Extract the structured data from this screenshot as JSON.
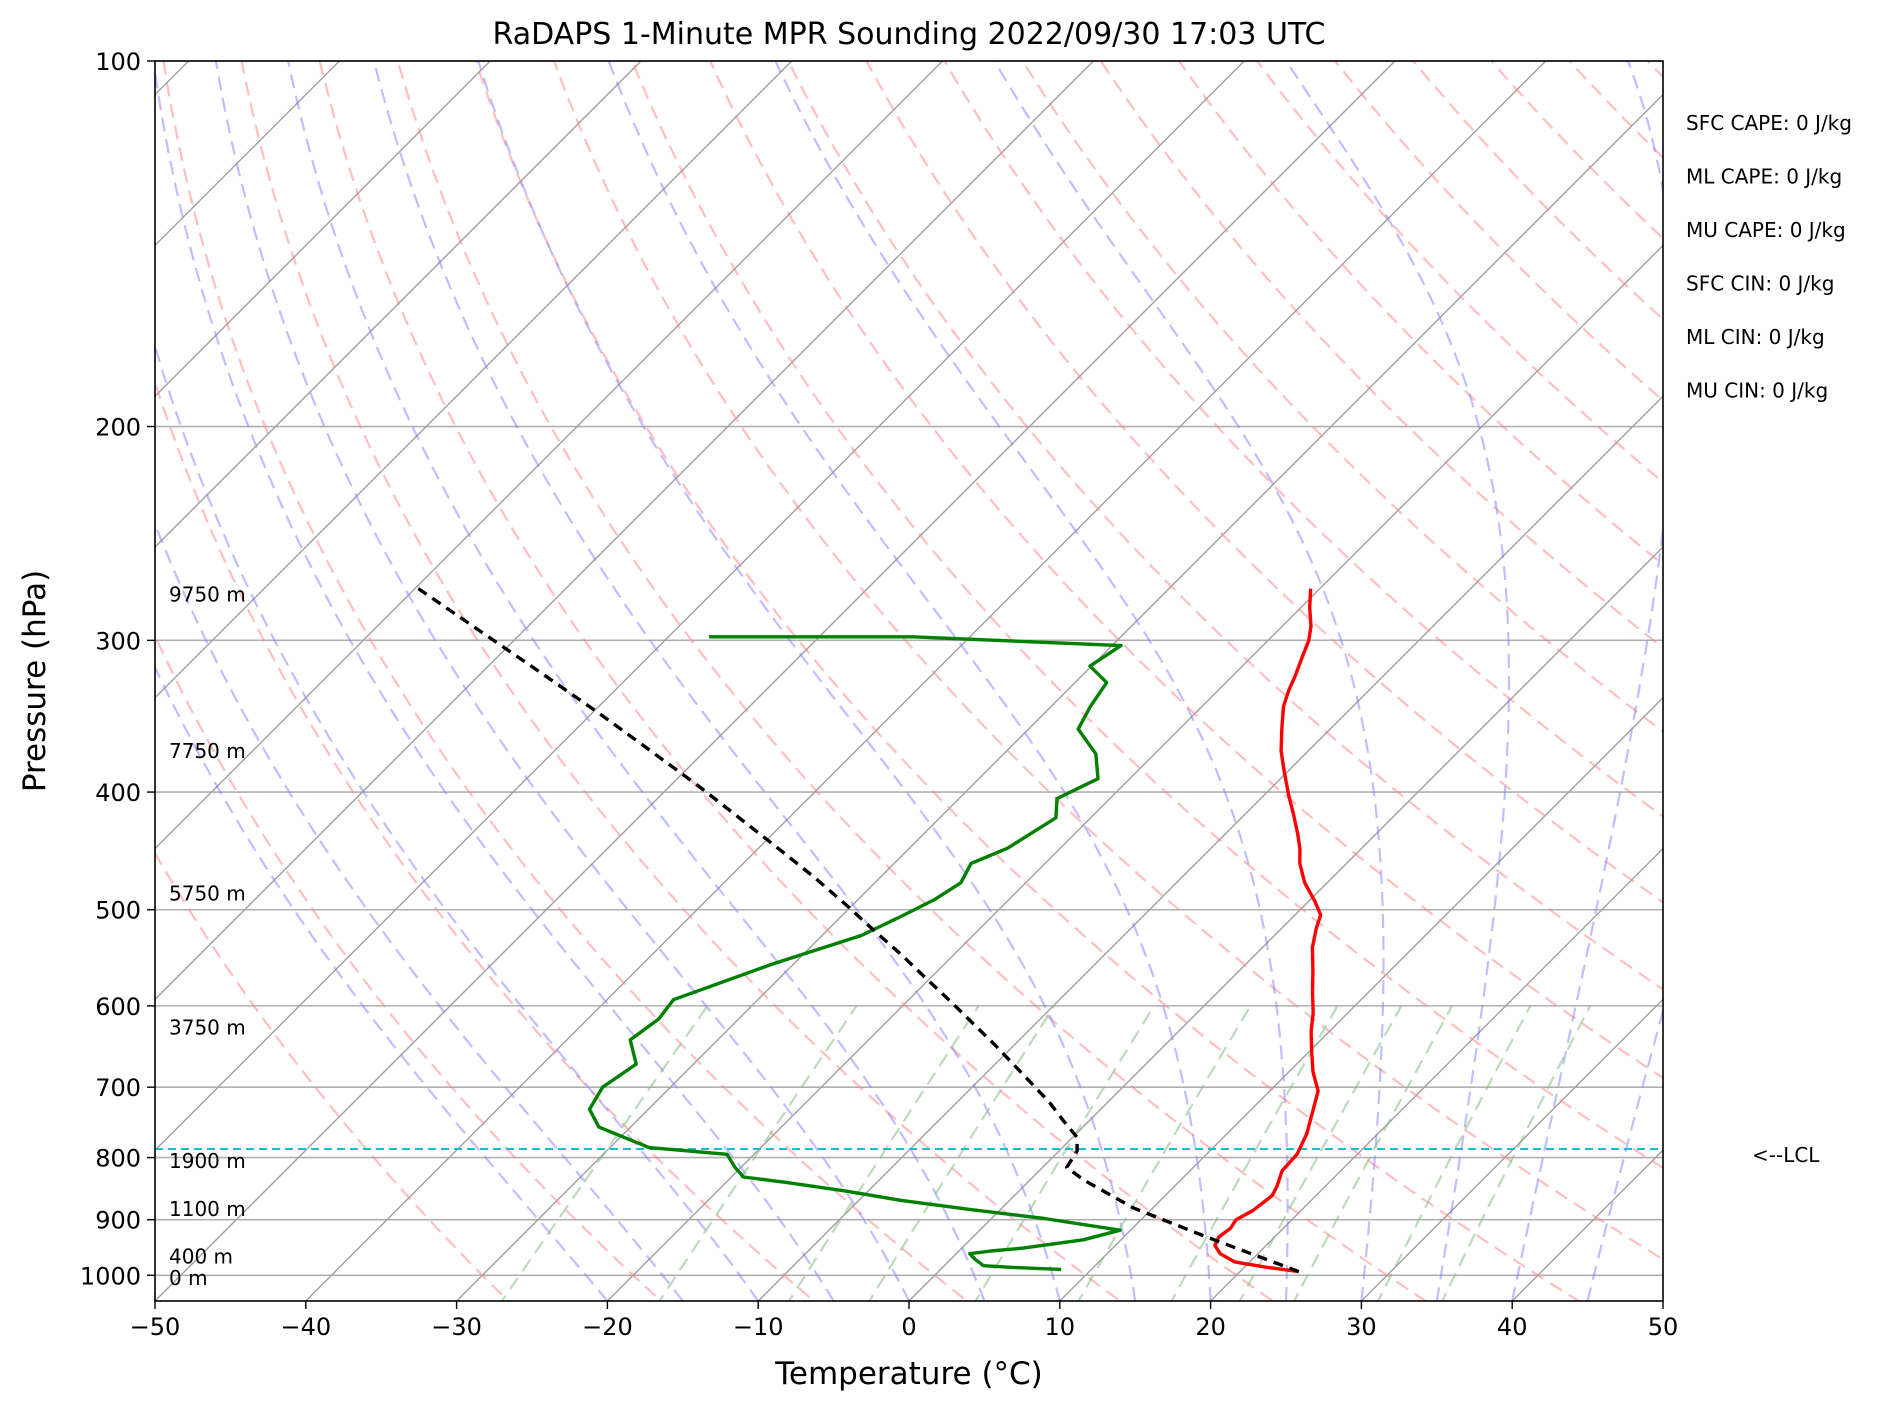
{
  "chart_data": {
    "type": "line",
    "title": "RaDAPS 1-Minute MPR Sounding 2022/09/30 17:03 UTC",
    "xlabel": "Temperature (°C)",
    "ylabel": "Pressure (hPa)",
    "xlim": [
      -50,
      50
    ],
    "ylim": [
      1050,
      100
    ],
    "y_scale": "log",
    "skew": "skew-T log-P",
    "grid": true,
    "x_ticks": [
      "−50",
      "−40",
      "−30",
      "−20",
      "−10",
      "0",
      "10",
      "20",
      "30",
      "40",
      "50"
    ],
    "x_tick_values": [
      -50,
      -40,
      -30,
      -20,
      -10,
      0,
      10,
      20,
      30,
      40,
      50
    ],
    "y_ticks": [
      "100",
      "200",
      "300",
      "400",
      "500",
      "600",
      "700",
      "800",
      "900",
      "1000"
    ],
    "y_tick_values": [
      100,
      200,
      300,
      400,
      500,
      600,
      700,
      800,
      900,
      1000
    ],
    "height_labels": [
      {
        "label": "9750 m",
        "p": 275
      },
      {
        "label": "7750 m",
        "p": 370
      },
      {
        "label": "5750 m",
        "p": 485
      },
      {
        "label": "3750 m",
        "p": 625
      },
      {
        "label": "1900 m",
        "p": 805
      },
      {
        "label": "1100 m",
        "p": 882
      },
      {
        "label": "400 m",
        "p": 965
      },
      {
        "label": "0 m",
        "p": 1005
      }
    ],
    "lcl": {
      "label": "<--LCL",
      "p": 787,
      "color": "#17becf"
    },
    "indices": [
      "SFC CAPE: 0 J/kg",
      "ML CAPE: 0 J/kg",
      "MU CAPE: 0 J/kg",
      "SFC CIN: 0 J/kg",
      "ML CIN: 0 J/kg",
      "MU CIN: 0 J/kg"
    ],
    "colors": {
      "temperature": "#ff0000",
      "dewpoint": "#008000",
      "parcel": "#000000",
      "isotherm": "#a0a0a0",
      "dry_adiabat": "#ff8080",
      "moist_adiabat": "#8080ff",
      "mixing_ratio": "#80c080",
      "lcl": "#17becf"
    },
    "series": [
      {
        "name": "",
        "color": "#ff0000",
        "points": [
          [
            23.9,
            993
          ],
          [
            21.5,
            985
          ],
          [
            19.0,
            975
          ],
          [
            17.5,
            960
          ],
          [
            16.6,
            945
          ],
          [
            16.3,
            930
          ],
          [
            16.5,
            915
          ],
          [
            16.3,
            900
          ],
          [
            16.8,
            885
          ],
          [
            17.1,
            860
          ],
          [
            16.8,
            845
          ],
          [
            16.1,
            820
          ],
          [
            16.0,
            795
          ],
          [
            15.3,
            765
          ],
          [
            14.1,
            730
          ],
          [
            13.2,
            705
          ],
          [
            11.6,
            680
          ],
          [
            10.2,
            655
          ],
          [
            8.8,
            630
          ],
          [
            7.7,
            608
          ],
          [
            6.3,
            585
          ],
          [
            4.8,
            560
          ],
          [
            3.3,
            537
          ],
          [
            2.3,
            518
          ],
          [
            1.7,
            505
          ],
          [
            0.4,
            492
          ],
          [
            -1.5,
            475
          ],
          [
            -3.1,
            458
          ],
          [
            -4.1,
            445
          ],
          [
            -5.2,
            433
          ],
          [
            -6.7,
            418
          ],
          [
            -8.4,
            402
          ],
          [
            -10.2,
            385
          ],
          [
            -11.8,
            370
          ],
          [
            -13.2,
            355
          ],
          [
            -14.6,
            340
          ],
          [
            -15.3,
            330
          ],
          [
            -15.9,
            320
          ],
          [
            -16.6,
            310
          ],
          [
            -17.3,
            300
          ],
          [
            -18.1,
            292
          ],
          [
            -19.4,
            282
          ],
          [
            -20.6,
            272
          ]
        ]
      },
      {
        "name": "",
        "color": "#008000",
        "points": [
          [
            8.0,
            989
          ],
          [
            4.5,
            985
          ],
          [
            2.6,
            982
          ],
          [
            1.6,
            970
          ],
          [
            0.9,
            960
          ],
          [
            2.1,
            955
          ],
          [
            4.0,
            950
          ],
          [
            7.5,
            935
          ],
          [
            9.3,
            918
          ],
          [
            3.5,
            898
          ],
          [
            -1.9,
            883
          ],
          [
            -7.1,
            868
          ],
          [
            -11.6,
            852
          ],
          [
            -16.2,
            838
          ],
          [
            -19.2,
            830
          ],
          [
            -20.4,
            815
          ],
          [
            -21.8,
            795
          ],
          [
            -27.4,
            785
          ],
          [
            -32.1,
            755
          ],
          [
            -33.9,
            730
          ],
          [
            -34.5,
            700
          ],
          [
            -33.8,
            670
          ],
          [
            -35.8,
            640
          ],
          [
            -35.3,
            615
          ],
          [
            -35.6,
            593
          ],
          [
            -31.5,
            555
          ],
          [
            -27.4,
            525
          ],
          [
            -26.0,
            506
          ],
          [
            -24.9,
            490
          ],
          [
            -24.3,
            475
          ],
          [
            -24.9,
            458
          ],
          [
            -23.5,
            445
          ],
          [
            -22.3,
            420
          ],
          [
            -23.5,
            405
          ],
          [
            -22.1,
            390
          ],
          [
            -23.9,
            372
          ],
          [
            -26.7,
            355
          ],
          [
            -27.4,
            340
          ],
          [
            -27.9,
            325
          ],
          [
            -30.1,
            315
          ],
          [
            -29.4,
            303
          ],
          [
            -43.8,
            298
          ],
          [
            -57.3,
            298
          ]
        ]
      },
      {
        "name": "",
        "color": "#000000",
        "dashed": true,
        "points": [
          [
            23.9,
            993
          ],
          [
            15.5,
            930
          ],
          [
            8.7,
            880
          ],
          [
            3.6,
            835
          ],
          [
            1.6,
            815
          ],
          [
            1.2,
            790
          ],
          [
            0.3,
            770
          ],
          [
            -1.8,
            745
          ],
          [
            -3.9,
            720
          ],
          [
            -6.3,
            695
          ],
          [
            -8.8,
            670
          ],
          [
            -11.4,
            645
          ],
          [
            -14.2,
            620
          ],
          [
            -17.1,
            595
          ],
          [
            -20.2,
            570
          ],
          [
            -23.4,
            545
          ],
          [
            -26.9,
            520
          ],
          [
            -30.5,
            495
          ],
          [
            -34.4,
            470
          ],
          [
            -38.7,
            445
          ],
          [
            -43.3,
            420
          ],
          [
            -48.2,
            395
          ],
          [
            -53.6,
            370
          ],
          [
            -59.4,
            345
          ],
          [
            -65.8,
            320
          ],
          [
            -72.8,
            295
          ],
          [
            -80.4,
            270
          ]
        ]
      }
    ]
  }
}
